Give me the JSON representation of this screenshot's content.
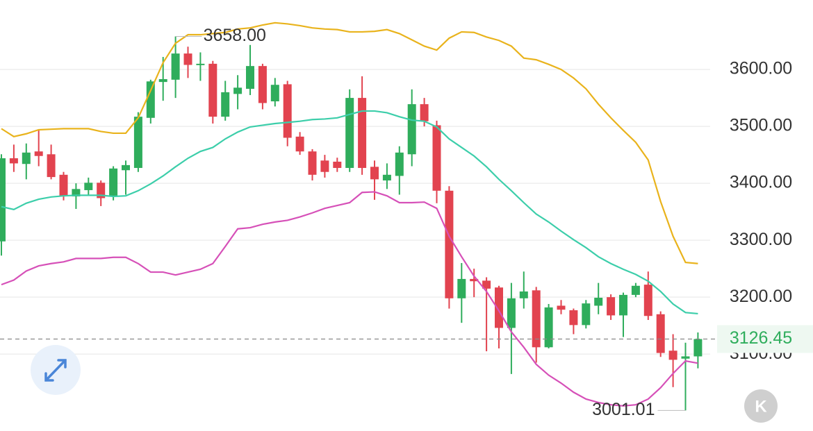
{
  "chart_data": {
    "type": "candlestick",
    "up_color": "#2fad5c",
    "down_color": "#e2434f",
    "ylim": [
      2971,
      3722
    ],
    "yticks": [
      {
        "value": 3100,
        "label": "3100.00"
      },
      {
        "value": 3200,
        "label": "3200.00"
      },
      {
        "value": 3300,
        "label": "3300.00"
      },
      {
        "value": 3400,
        "label": "3400.00"
      },
      {
        "value": 3500,
        "label": "3500.00"
      },
      {
        "value": 3600,
        "label": "3600.00"
      }
    ],
    "grid": true,
    "open": [
      3298,
      3444,
      3434,
      3456,
      3451,
      3415,
      3377,
      3388,
      3401,
      3377,
      3423,
      3427,
      3515,
      3578,
      3582,
      3628,
      3608,
      3610,
      3517,
      3557,
      3566,
      3606,
      3544,
      3574,
      3482,
      3456,
      3440,
      3438,
      3427,
      3550,
      3429,
      3405,
      3413,
      3451,
      3539,
      3502,
      3387,
      3198,
      3232,
      3229,
      3217,
      3146,
      3198,
      3212,
      3112,
      3185,
      3177,
      3151,
      3185,
      3200,
      3168,
      3204,
      3222,
      3170,
      3106,
      3092,
      3096
    ],
    "high": [
      3451,
      3468,
      3470,
      3493,
      3468,
      3420,
      3400,
      3410,
      3405,
      3430,
      3440,
      3525,
      3582,
      3622,
      3658,
      3640,
      3630,
      3615,
      3580,
      3590,
      3643,
      3610,
      3585,
      3580,
      3490,
      3460,
      3450,
      3445,
      3565,
      3588,
      3440,
      3435,
      3465,
      3565,
      3550,
      3510,
      3395,
      3260,
      3250,
      3235,
      3220,
      3225,
      3245,
      3218,
      3188,
      3195,
      3180,
      3195,
      3225,
      3205,
      3208,
      3225,
      3245,
      3175,
      3135,
      3120,
      3138
    ],
    "low": [
      3273,
      3420,
      3407,
      3430,
      3407,
      3370,
      3355,
      3380,
      3360,
      3370,
      3380,
      3420,
      3505,
      3545,
      3550,
      3585,
      3580,
      3505,
      3510,
      3530,
      3555,
      3530,
      3535,
      3465,
      3450,
      3405,
      3410,
      3420,
      3420,
      3415,
      3371,
      3390,
      3380,
      3430,
      3500,
      3365,
      3180,
      3155,
      3200,
      3105,
      3110,
      3065,
      3180,
      3085,
      3110,
      3170,
      3135,
      3145,
      3170,
      3160,
      3130,
      3200,
      3160,
      3095,
      3042,
      3001.01,
      3075
    ],
    "close": [
      3444,
      3435,
      3454,
      3448,
      3411,
      3378,
      3390,
      3401,
      3374,
      3426,
      3432,
      3517,
      3579,
      3583,
      3628,
      3608,
      3610,
      3517,
      3560,
      3568,
      3606,
      3541,
      3573,
      3480,
      3456,
      3415,
      3420,
      3427,
      3550,
      3427,
      3407,
      3415,
      3454,
      3539,
      3509,
      3387,
      3198,
      3232,
      3228,
      3215,
      3146,
      3198,
      3210,
      3112,
      3182,
      3178,
      3151,
      3189,
      3199,
      3168,
      3204,
      3220,
      3167,
      3102,
      3090,
      3096,
      3126.45
    ],
    "series": [
      {
        "name": "upper",
        "color": "#e9b31c",
        "values": [
          3496,
          3482,
          3487,
          3494,
          3495,
          3496,
          3496,
          3496,
          3491,
          3488,
          3488,
          3515,
          3563,
          3612,
          3646,
          3661,
          3661,
          3663,
          3665,
          3671,
          3673,
          3678,
          3682,
          3680,
          3677,
          3673,
          3671,
          3670,
          3666,
          3666,
          3667,
          3670,
          3663,
          3652,
          3641,
          3634,
          3655,
          3666,
          3665,
          3657,
          3651,
          3641,
          3620,
          3617,
          3609,
          3600,
          3585,
          3566,
          3539,
          3515,
          3493,
          3472,
          3441,
          3368,
          3307,
          3261,
          3259
        ]
      },
      {
        "name": "middle",
        "color": "#3cceaa",
        "values": [
          3359,
          3354,
          3365,
          3372,
          3376,
          3378,
          3379,
          3379,
          3379,
          3377,
          3378,
          3387,
          3399,
          3413,
          3429,
          3444,
          3456,
          3463,
          3478,
          3490,
          3499,
          3502,
          3505,
          3507,
          3509,
          3512,
          3513,
          3515,
          3521,
          3527,
          3527,
          3524,
          3517,
          3511,
          3509,
          3499,
          3478,
          3463,
          3448,
          3429,
          3407,
          3387,
          3366,
          3346,
          3332,
          3316,
          3301,
          3287,
          3271,
          3259,
          3249,
          3240,
          3228,
          3210,
          3188,
          3173,
          3171
        ]
      },
      {
        "name": "lower",
        "color": "#d650b8",
        "values": [
          3222,
          3230,
          3246,
          3255,
          3259,
          3262,
          3268,
          3268,
          3268,
          3270,
          3270,
          3259,
          3244,
          3244,
          3239,
          3244,
          3249,
          3259,
          3289,
          3320,
          3322,
          3328,
          3332,
          3335,
          3341,
          3348,
          3356,
          3361,
          3366,
          3384,
          3385,
          3378,
          3366,
          3366,
          3367,
          3356,
          3307,
          3271,
          3237,
          3210,
          3176,
          3139,
          3112,
          3082,
          3063,
          3049,
          3033,
          3021,
          3015,
          3011,
          3009,
          3011,
          3021,
          3041,
          3066,
          3088,
          3084
        ]
      }
    ],
    "max_label": {
      "value": 3658,
      "label": "3658.00"
    },
    "min_label": {
      "value": 3001.01,
      "label": "3001.01"
    },
    "last_price": 3126.45
  },
  "controls": {
    "kline_button": "K"
  }
}
